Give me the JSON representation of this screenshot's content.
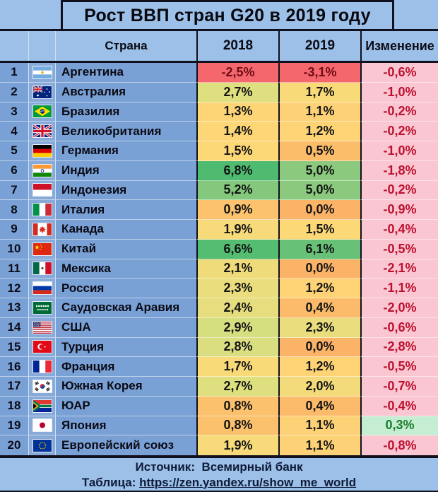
{
  "title": "Рост ВВП стран G20 в 2019 году",
  "footer": {
    "source_label": "Источник:",
    "source_name": "Всемирный банк",
    "table_label": "Таблица:",
    "table_url": "https://zen.yandex.ru/show_me_world"
  },
  "colors": {
    "band_bg": "#9cc0e8",
    "row_bg": "#7aa1d5",
    "border_dark": "#10101e",
    "change_negative_bg": "#f9c6d1",
    "change_negative_text": "#bd1130",
    "change_positive_bg": "#c5edd2",
    "change_positive_text": "#1b7e2c",
    "negative_value_text": "#6e0c14",
    "scale_min_red": "#f4676d",
    "scale_mid_yellow": "#fdd577",
    "scale_max_green": "#4fbb70"
  },
  "chart_data": {
    "type": "table",
    "title": "Рост ВВП стран G20 в 2019 году",
    "columns": [
      "Страна",
      "2018",
      "2019",
      "Изменение"
    ],
    "rows": [
      {
        "rank": "1",
        "country": "Аргентина",
        "flag": "argentina",
        "gdp_2018": "-2,5%",
        "bg_2018": "#f4676d",
        "gdp_2019": "-3,1%",
        "bg_2019": "#f4676d",
        "change": "-0,6%"
      },
      {
        "rank": "2",
        "country": "Австралия",
        "flag": "australia",
        "gdp_2018": "2,7%",
        "bg_2018": "#dee07f",
        "gdp_2019": "1,7%",
        "bg_2019": "#f9da79",
        "change": "-1,0%"
      },
      {
        "rank": "3",
        "country": "Бразилия",
        "flag": "brazil",
        "gdp_2018": "1,3%",
        "bg_2018": "#fdd577",
        "gdp_2019": "1,1%",
        "bg_2019": "#fdd176",
        "change": "-0,2%"
      },
      {
        "rank": "4",
        "country": "Великобритания",
        "flag": "uk",
        "gdp_2018": "1,4%",
        "bg_2018": "#fdd677",
        "gdp_2019": "1,2%",
        "bg_2019": "#fdd376",
        "change": "-0,2%"
      },
      {
        "rank": "5",
        "country": "Германия",
        "flag": "germany",
        "gdp_2018": "1,5%",
        "bg_2018": "#fdd877",
        "gdp_2019": "0,5%",
        "bg_2019": "#fcbd6b",
        "change": "-1,0%"
      },
      {
        "rank": "6",
        "country": "Индия",
        "flag": "india",
        "gdp_2018": "6,8%",
        "bg_2018": "#4fbb70",
        "gdp_2019": "5,0%",
        "bg_2019": "#8bca7e",
        "change": "-1,8%"
      },
      {
        "rank": "7",
        "country": "Индонезия",
        "flag": "indonesia",
        "gdp_2018": "5,2%",
        "bg_2018": "#83c87c",
        "gdp_2019": "5,0%",
        "bg_2019": "#8bca7e",
        "change": "-0,2%"
      },
      {
        "rank": "8",
        "country": "Италия",
        "flag": "italy",
        "gdp_2018": "0,9%",
        "bg_2018": "#fcc26e",
        "gdp_2019": "0,0%",
        "bg_2019": "#fbb368",
        "change": "-0,9%"
      },
      {
        "rank": "9",
        "country": "Канада",
        "flag": "canada",
        "gdp_2018": "1,9%",
        "bg_2018": "#f7da7a",
        "gdp_2019": "1,5%",
        "bg_2019": "#fdd877",
        "change": "-0,4%"
      },
      {
        "rank": "10",
        "country": "Китай",
        "flag": "china",
        "gdp_2018": "6,6%",
        "bg_2018": "#55bd72",
        "gdp_2019": "6,1%",
        "bg_2019": "#67c177",
        "change": "-0,5%"
      },
      {
        "rank": "11",
        "country": "Мексика",
        "flag": "mexico",
        "gdp_2018": "2,1%",
        "bg_2018": "#f0db7b",
        "gdp_2019": "0,0%",
        "bg_2019": "#fbb368",
        "change": "-2,1%"
      },
      {
        "rank": "12",
        "country": "Россия",
        "flag": "russia",
        "gdp_2018": "2,3%",
        "bg_2018": "#e9dd7d",
        "gdp_2019": "1,2%",
        "bg_2019": "#fdd376",
        "change": "-1,1%"
      },
      {
        "rank": "13",
        "country": "Саудовская Аравия",
        "flag": "saudi-arabia",
        "gdp_2018": "2,4%",
        "bg_2018": "#e6dd7e",
        "gdp_2019": "0,4%",
        "bg_2019": "#fcbb6a",
        "change": "-2,0%"
      },
      {
        "rank": "14",
        "country": "США",
        "flag": "usa",
        "gdp_2018": "2,9%",
        "bg_2018": "#d6df80",
        "gdp_2019": "2,3%",
        "bg_2019": "#e9dd7d",
        "change": "-0,6%"
      },
      {
        "rank": "15",
        "country": "Турция",
        "flag": "turkey",
        "gdp_2018": "2,8%",
        "bg_2018": "#dade80",
        "gdp_2019": "0,0%",
        "bg_2019": "#fbb368",
        "change": "-2,8%"
      },
      {
        "rank": "16",
        "country": "Франция",
        "flag": "france",
        "gdp_2018": "1,7%",
        "bg_2018": "#f9da79",
        "gdp_2019": "1,2%",
        "bg_2019": "#fdd376",
        "change": "-0,5%"
      },
      {
        "rank": "17",
        "country": "Южная Корея",
        "flag": "south-korea",
        "gdp_2018": "2,7%",
        "bg_2018": "#dee07f",
        "gdp_2019": "2,0%",
        "bg_2019": "#f3da7a",
        "change": "-0,7%"
      },
      {
        "rank": "18",
        "country": "ЮАР",
        "flag": "south-africa",
        "gdp_2018": "0,8%",
        "bg_2018": "#fcc16d",
        "gdp_2019": "0,4%",
        "bg_2019": "#fcbb6a",
        "change": "-0,4%"
      },
      {
        "rank": "19",
        "country": "Япония",
        "flag": "japan",
        "gdp_2018": "0,8%",
        "bg_2018": "#fcc16d",
        "gdp_2019": "1,1%",
        "bg_2019": "#fdd176",
        "change": "0,3%"
      },
      {
        "rank": "20",
        "country": "Европейский союз",
        "flag": "eu",
        "gdp_2018": "1,9%",
        "bg_2018": "#f7da7a",
        "gdp_2019": "1,1%",
        "bg_2019": "#fdd176",
        "change": "-0,8%"
      }
    ]
  }
}
